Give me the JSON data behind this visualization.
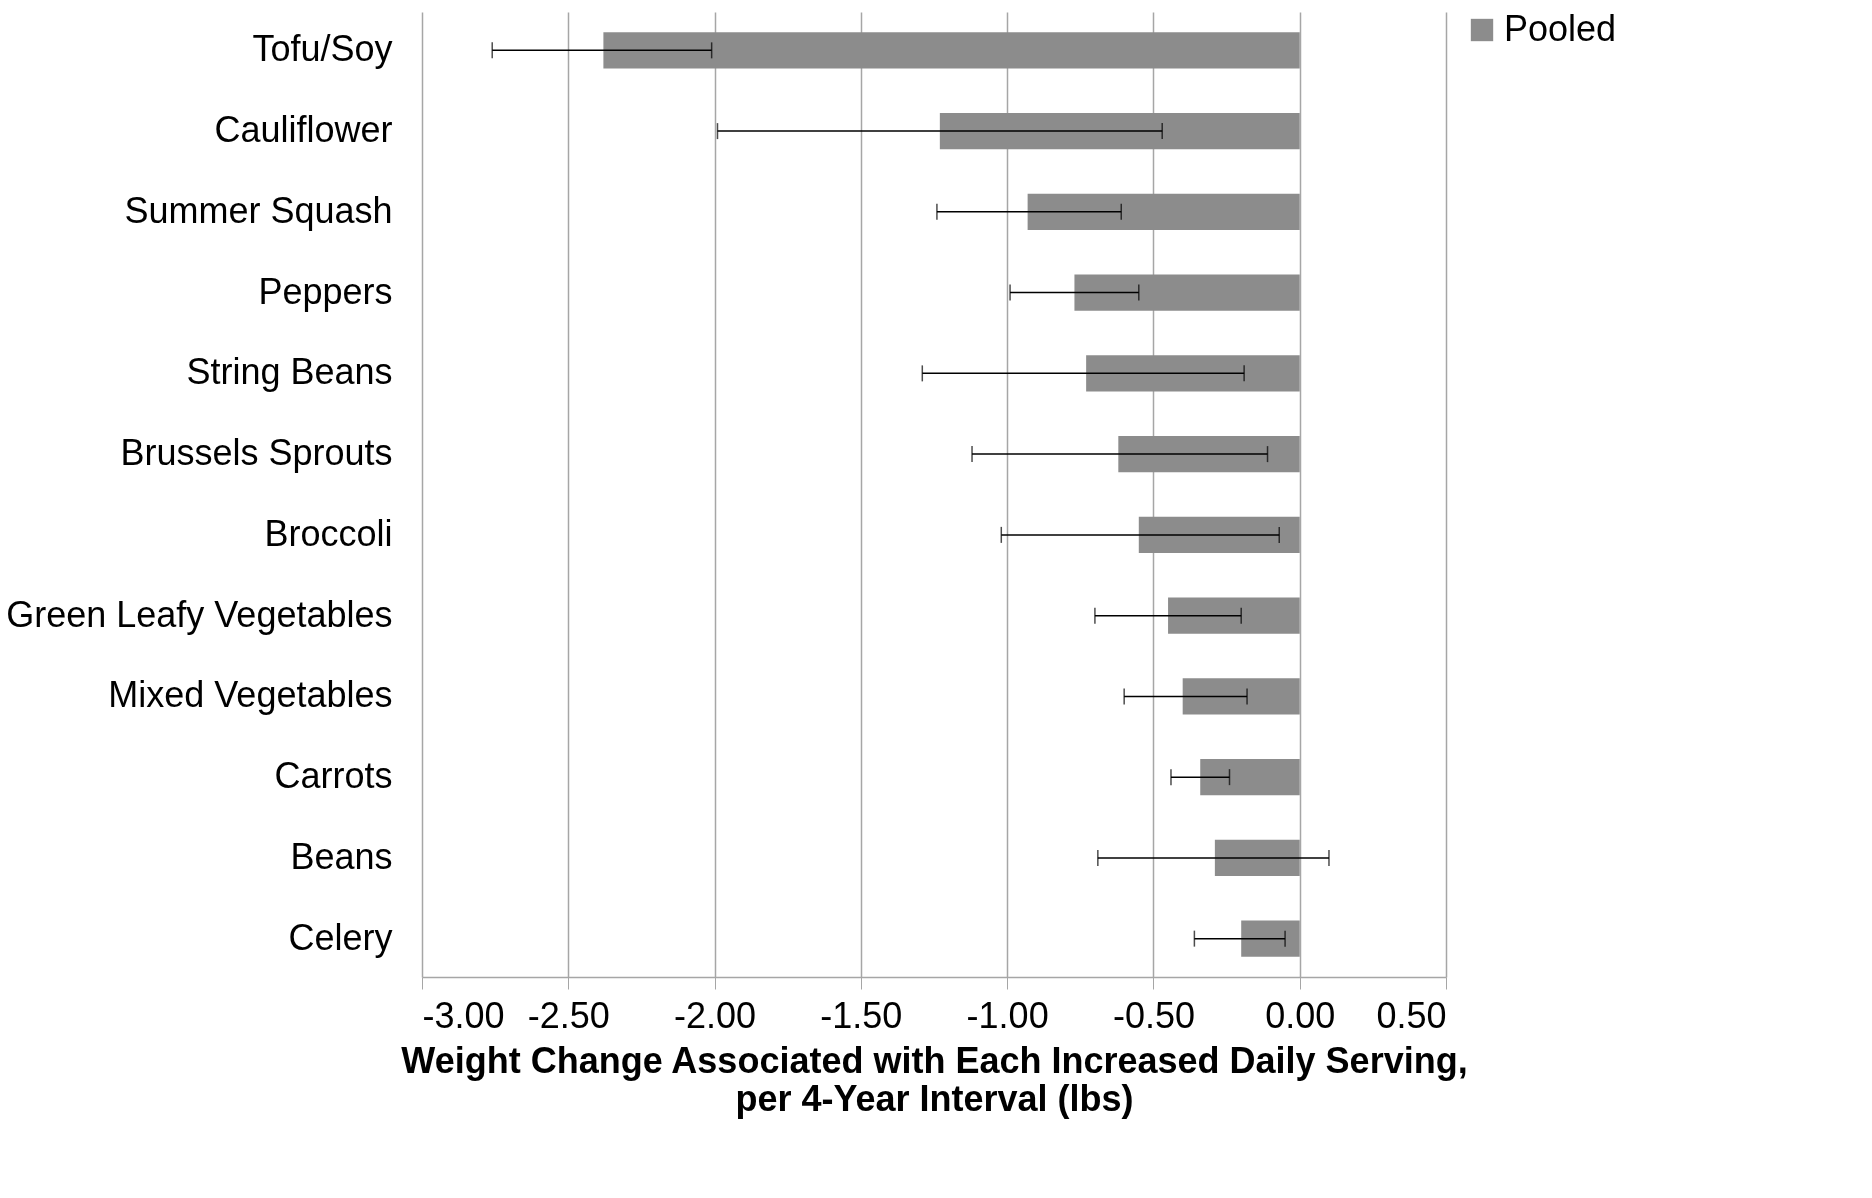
{
  "chart_data": {
    "type": "bar",
    "orientation": "horizontal",
    "xlabel": "Weight Change Associated with Each Increased Daily Serving, per 4-Year Interval (lbs)",
    "categories": [
      "Tofu/Soy",
      "Cauliflower",
      "Summer Squash",
      "Peppers",
      "String Beans",
      "Brussels Sprouts",
      "Broccoli",
      "Green Leafy Vegetables",
      "Mixed Vegetables",
      "Carrots",
      "Beans",
      "Celery"
    ],
    "series": [
      {
        "name": "Pooled",
        "color": "#8c8c8c",
        "values": [
          -2.38,
          -1.23,
          -0.93,
          -0.77,
          -0.73,
          -0.62,
          -0.55,
          -0.45,
          -0.4,
          -0.34,
          -0.29,
          -0.2
        ],
        "errors": [
          [
            -2.76,
            -2.01
          ],
          [
            -1.99,
            -0.47
          ],
          [
            -1.24,
            -0.61
          ],
          [
            -0.99,
            -0.55
          ],
          [
            -1.29,
            -0.19
          ],
          [
            -1.12,
            -0.11
          ],
          [
            -1.02,
            -0.07
          ],
          [
            -0.7,
            -0.2
          ],
          [
            -0.6,
            -0.18
          ],
          [
            -0.44,
            -0.24
          ],
          [
            -0.69,
            0.1
          ],
          [
            -0.36,
            -0.05
          ]
        ]
      }
    ],
    "xlim": [
      -3,
      0.5
    ],
    "xticks": [
      {
        "value": -3,
        "label": "-3.00"
      },
      {
        "value": -2.5,
        "label": "-2.50"
      },
      {
        "value": -2,
        "label": "-2.00"
      },
      {
        "value": -1.5,
        "label": "-1.50"
      },
      {
        "value": -1,
        "label": "-1.00"
      },
      {
        "value": -0.5,
        "label": "-0.50"
      },
      {
        "value": 0,
        "label": "0.00"
      },
      {
        "value": 0.5,
        "label": "0.50"
      }
    ],
    "grid": "x",
    "legend": "right"
  }
}
